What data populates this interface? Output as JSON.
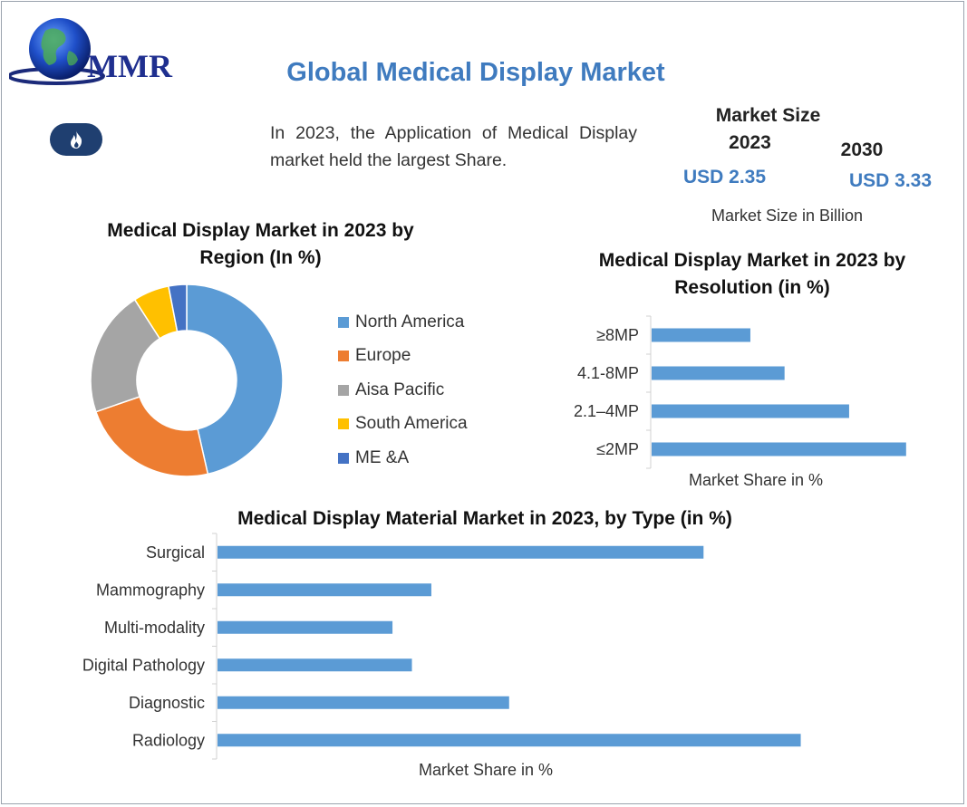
{
  "logo": {
    "text": "MMR"
  },
  "header": {
    "title": "Global Medical Display Market"
  },
  "intro": {
    "text": "In 2023, the Application of Medical Display market held the largest Share."
  },
  "market_size": {
    "title_line1": "Market Size",
    "year_2023": "2023",
    "year_2030": "2030",
    "value_2023": "USD 2.35",
    "value_2030": "USD 3.33",
    "unit": "Market Size in Billion"
  },
  "colors": {
    "blue": "#5b9bd5",
    "orange": "#ed7d31",
    "gray": "#a5a5a5",
    "yellow": "#ffc000",
    "dark_blue": "#4472c4",
    "title_blue": "#3f7bbf"
  },
  "icons": {
    "badge": "fire-icon",
    "logo": "globe-icon"
  },
  "chart_data": [
    {
      "type": "donut",
      "title_line1": "Medical Display Market in 2023 by",
      "title_line2": "Region (In %)",
      "categories": [
        "North America",
        "Europe",
        "Aisa Pacific",
        "South America",
        "ME &A"
      ],
      "values": [
        46,
        23,
        21,
        6,
        3
      ],
      "colors": [
        "#5b9bd5",
        "#ed7d31",
        "#a5a5a5",
        "#ffc000",
        "#4472c4"
      ],
      "legend_position": "right"
    },
    {
      "type": "bar",
      "orientation": "horizontal",
      "title_line1": "Medical Display Market in 2023 by",
      "title_line2": "Resolution (in %)",
      "categories": [
        "≥8MP",
        "4.1-8MP",
        "2.1–4MP",
        "≤2MP"
      ],
      "values": [
        13,
        17.5,
        26,
        33.5
      ],
      "xlabel": "Market Share in %",
      "xlim": [
        0,
        34
      ],
      "grid": false
    },
    {
      "type": "bar",
      "orientation": "horizontal",
      "title": "Medical Display Material Market in 2023, by Type (in %)",
      "categories": [
        "Surgical",
        "Mammography",
        "Multi-modality",
        "Digital Pathology",
        "Diagnostic",
        "Radiology"
      ],
      "values": [
        25,
        11,
        9,
        10,
        15,
        30
      ],
      "xlabel": "Market  Share in %",
      "xlim": [
        0,
        31
      ],
      "grid": false
    }
  ]
}
